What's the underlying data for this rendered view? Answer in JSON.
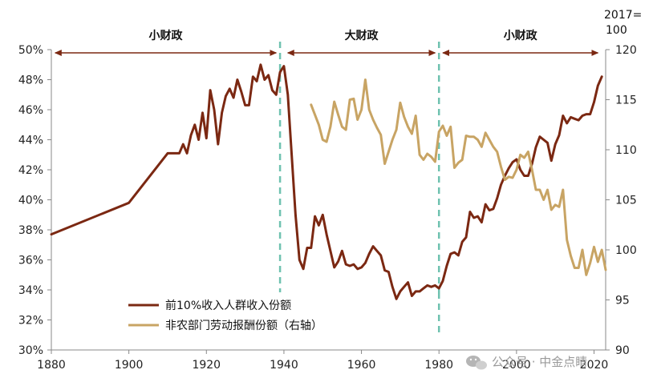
{
  "chart_data": {
    "type": "line",
    "left_axis": {
      "min": 30,
      "max": 50,
      "step": 2,
      "tick_labels": [
        "30%",
        "32%",
        "34%",
        "36%",
        "38%",
        "40%",
        "42%",
        "44%",
        "46%",
        "48%",
        "50%"
      ]
    },
    "right_axis": {
      "min": 90,
      "max": 120,
      "step": 5,
      "tick_labels": [
        "90",
        "95",
        "100",
        "105",
        "110",
        "115",
        "120"
      ],
      "unit_label_line1": "2017=",
      "unit_label_line2": "100"
    },
    "x_axis": {
      "min": 1880,
      "max": 2023,
      "tick_labels": [
        "1880",
        "1900",
        "1920",
        "1940",
        "1960",
        "1980",
        "2000",
        "2020"
      ]
    },
    "periods": [
      {
        "label": "小财政",
        "start": 1881,
        "end": 1938
      },
      {
        "label": "大财政",
        "start": 1941,
        "end": 1979
      },
      {
        "label": "小财政",
        "start": 1981,
        "end": 2021
      }
    ],
    "dividers": [
      1939,
      1980
    ],
    "series": [
      {
        "name": "前10%收入人群收入份额",
        "axis": "left",
        "color": "#7b2812",
        "points": [
          [
            1880,
            37.7
          ],
          [
            1900,
            39.8
          ],
          [
            1910,
            43.1
          ],
          [
            1913,
            43.1
          ],
          [
            1914,
            43.7
          ],
          [
            1915,
            43.1
          ],
          [
            1916,
            44.3
          ],
          [
            1917,
            45.0
          ],
          [
            1918,
            44.0
          ],
          [
            1919,
            45.8
          ],
          [
            1920,
            44.1
          ],
          [
            1921,
            47.3
          ],
          [
            1922,
            46.0
          ],
          [
            1923,
            43.7
          ],
          [
            1924,
            45.8
          ],
          [
            1925,
            46.9
          ],
          [
            1926,
            47.4
          ],
          [
            1927,
            46.8
          ],
          [
            1928,
            48.0
          ],
          [
            1929,
            47.2
          ],
          [
            1930,
            46.3
          ],
          [
            1931,
            46.3
          ],
          [
            1932,
            48.2
          ],
          [
            1933,
            47.9
          ],
          [
            1934,
            49.0
          ],
          [
            1935,
            48.0
          ],
          [
            1936,
            48.3
          ],
          [
            1937,
            47.3
          ],
          [
            1938,
            47.0
          ],
          [
            1939,
            48.5
          ],
          [
            1940,
            48.9
          ],
          [
            1941,
            47.0
          ],
          [
            1942,
            43.0
          ],
          [
            1943,
            39.0
          ],
          [
            1944,
            36.0
          ],
          [
            1945,
            35.4
          ],
          [
            1946,
            36.8
          ],
          [
            1947,
            36.8
          ],
          [
            1948,
            38.9
          ],
          [
            1949,
            38.3
          ],
          [
            1950,
            39.0
          ],
          [
            1951,
            37.7
          ],
          [
            1952,
            36.6
          ],
          [
            1953,
            35.5
          ],
          [
            1954,
            35.9
          ],
          [
            1955,
            36.6
          ],
          [
            1956,
            35.7
          ],
          [
            1957,
            35.6
          ],
          [
            1958,
            35.7
          ],
          [
            1959,
            35.4
          ],
          [
            1960,
            35.5
          ],
          [
            1961,
            35.8
          ],
          [
            1962,
            36.4
          ],
          [
            1963,
            36.9
          ],
          [
            1964,
            36.6
          ],
          [
            1965,
            36.3
          ],
          [
            1966,
            35.3
          ],
          [
            1967,
            35.2
          ],
          [
            1968,
            34.2
          ],
          [
            1969,
            33.4
          ],
          [
            1970,
            33.9
          ],
          [
            1971,
            34.2
          ],
          [
            1972,
            34.5
          ],
          [
            1973,
            33.6
          ],
          [
            1974,
            33.9
          ],
          [
            1975,
            33.9
          ],
          [
            1976,
            34.1
          ],
          [
            1977,
            34.3
          ],
          [
            1978,
            34.2
          ],
          [
            1979,
            34.3
          ],
          [
            1980,
            34.1
          ],
          [
            1981,
            34.6
          ],
          [
            1982,
            35.6
          ],
          [
            1983,
            36.4
          ],
          [
            1984,
            36.5
          ],
          [
            1985,
            36.3
          ],
          [
            1986,
            37.2
          ],
          [
            1987,
            37.5
          ],
          [
            1988,
            39.2
          ],
          [
            1989,
            38.8
          ],
          [
            1990,
            38.9
          ],
          [
            1991,
            38.5
          ],
          [
            1992,
            39.7
          ],
          [
            1993,
            39.3
          ],
          [
            1994,
            39.4
          ],
          [
            1995,
            40.1
          ],
          [
            1996,
            41.0
          ],
          [
            1997,
            41.6
          ],
          [
            1998,
            42.1
          ],
          [
            1999,
            42.5
          ],
          [
            2000,
            42.7
          ],
          [
            2001,
            42.0
          ],
          [
            2002,
            41.6
          ],
          [
            2003,
            41.6
          ],
          [
            2004,
            42.4
          ],
          [
            2005,
            43.5
          ],
          [
            2006,
            44.2
          ],
          [
            2007,
            44.0
          ],
          [
            2008,
            43.8
          ],
          [
            2009,
            42.6
          ],
          [
            2010,
            43.7
          ],
          [
            2011,
            44.3
          ],
          [
            2012,
            45.6
          ],
          [
            2013,
            45.1
          ],
          [
            2014,
            45.5
          ],
          [
            2015,
            45.4
          ],
          [
            2016,
            45.3
          ],
          [
            2017,
            45.6
          ],
          [
            2018,
            45.7
          ],
          [
            2019,
            45.7
          ],
          [
            2020,
            46.5
          ],
          [
            2021,
            47.6
          ],
          [
            2022,
            48.2
          ]
        ]
      },
      {
        "name": "非农部门劳动报酬份额（右轴）",
        "axis": "right",
        "color": "#c8a464",
        "points": [
          [
            1947,
            114.5
          ],
          [
            1948,
            113.5
          ],
          [
            1949,
            112.5
          ],
          [
            1950,
            111.0
          ],
          [
            1951,
            110.8
          ],
          [
            1952,
            112.3
          ],
          [
            1953,
            114.8
          ],
          [
            1954,
            113.5
          ],
          [
            1955,
            112.3
          ],
          [
            1956,
            112.0
          ],
          [
            1957,
            115.0
          ],
          [
            1958,
            115.1
          ],
          [
            1959,
            113.0
          ],
          [
            1960,
            114.0
          ],
          [
            1961,
            117.0
          ],
          [
            1962,
            114.0
          ],
          [
            1963,
            113.0
          ],
          [
            1964,
            112.2
          ],
          [
            1965,
            111.5
          ],
          [
            1966,
            108.6
          ],
          [
            1967,
            109.8
          ],
          [
            1968,
            111.0
          ],
          [
            1969,
            112.0
          ],
          [
            1970,
            114.7
          ],
          [
            1971,
            113.3
          ],
          [
            1972,
            112.3
          ],
          [
            1973,
            111.6
          ],
          [
            1974,
            113.4
          ],
          [
            1975,
            109.5
          ],
          [
            1976,
            109.0
          ],
          [
            1977,
            109.6
          ],
          [
            1978,
            109.3
          ],
          [
            1979,
            108.8
          ],
          [
            1980,
            111.8
          ],
          [
            1981,
            112.4
          ],
          [
            1982,
            111.4
          ],
          [
            1983,
            112.3
          ],
          [
            1984,
            108.2
          ],
          [
            1985,
            108.7
          ],
          [
            1986,
            109.0
          ],
          [
            1987,
            111.4
          ],
          [
            1988,
            111.3
          ],
          [
            1989,
            111.3
          ],
          [
            1990,
            111.0
          ],
          [
            1991,
            110.3
          ],
          [
            1992,
            111.7
          ],
          [
            1993,
            111.0
          ],
          [
            1994,
            110.3
          ],
          [
            1995,
            109.8
          ],
          [
            1996,
            108.3
          ],
          [
            1997,
            107.0
          ],
          [
            1998,
            107.3
          ],
          [
            1999,
            107.2
          ],
          [
            2000,
            108.0
          ],
          [
            2001,
            109.5
          ],
          [
            2002,
            109.2
          ],
          [
            2003,
            109.8
          ],
          [
            2004,
            108.0
          ],
          [
            2005,
            106.0
          ],
          [
            2006,
            106.0
          ],
          [
            2007,
            105.0
          ],
          [
            2008,
            106.0
          ],
          [
            2009,
            104.0
          ],
          [
            2010,
            104.5
          ],
          [
            2011,
            104.3
          ],
          [
            2012,
            106.0
          ],
          [
            2013,
            101.0
          ],
          [
            2014,
            99.4
          ],
          [
            2015,
            98.2
          ],
          [
            2016,
            98.2
          ],
          [
            2017,
            100.0
          ],
          [
            2018,
            97.5
          ],
          [
            2019,
            98.7
          ],
          [
            2020,
            100.3
          ],
          [
            2021,
            98.8
          ],
          [
            2022,
            100.0
          ],
          [
            2023,
            98.0
          ]
        ]
      }
    ]
  },
  "watermark": {
    "text": "公众号 · 中金点睛"
  }
}
